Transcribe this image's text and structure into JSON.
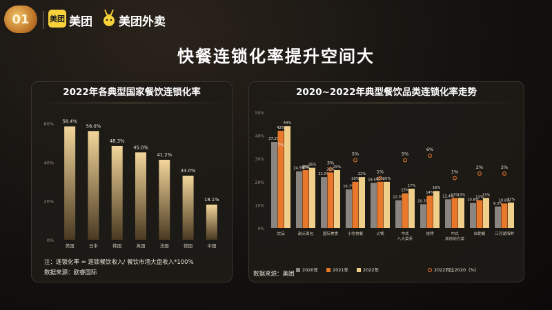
{
  "header": {
    "badge_text": "01",
    "meituan_icon_text": "美团",
    "meituan_label": "美团",
    "waimai_label": "美团外卖"
  },
  "main_title": "快餐连锁化率提升空间大",
  "left_panel": {
    "title": "2022年各典型国家餐饮连锁化率",
    "note": "注：连锁化率 = 连锁餐饮收入/ 餐饮市场大盘收入*100%",
    "source": "数据来源：欧睿国际"
  },
  "right_panel": {
    "title": "2020~2022年典型餐饮品类连锁化率走势",
    "source": "数据来源：美团"
  },
  "colors": {
    "bar_top": "#f2d59a",
    "bar_bottom": "#4a3a22",
    "s2020": "#8a8580",
    "s2021": "#e8782c",
    "s2022": "#f0cf8a",
    "growth": "#e8782c"
  },
  "chart_data": [
    {
      "type": "bar",
      "title": "2022年各典型国家餐饮连锁化率",
      "categories": [
        "美国",
        "日本",
        "韩国",
        "英国",
        "法国",
        "德国",
        "中国"
      ],
      "values": [
        58.4,
        56.0,
        48.3,
        45.0,
        41.2,
        33.0,
        18.1
      ],
      "value_labels": [
        "58.4%",
        "56.0%",
        "48.3%",
        "45.0%",
        "41.2%",
        "33.0%",
        "18.1%"
      ],
      "ylim": [
        0,
        60
      ],
      "yticks": [
        0,
        20,
        40,
        60
      ],
      "ytick_labels": [
        "0%",
        "20%",
        "40%",
        "60%"
      ],
      "grid": false
    },
    {
      "type": "bar",
      "title": "2020~2022年典型餐饮品类连锁化率走势",
      "categories": [
        "饮品",
        "甜点面包",
        "国际美食",
        "小吃快餐",
        "火锅",
        "中式\n八大菜系",
        "烧烤",
        "中式\n其他地方菜",
        "自助餐",
        "江河湖海鲜"
      ],
      "series": [
        {
          "name": "2020年",
          "values": [
            37.2,
            24.5,
            22.0,
            16.7,
            19.5,
            12.0,
            10.3,
            12.4,
            10.8,
            9.3
          ]
        },
        {
          "name": "2021年",
          "values": [
            42,
            25,
            24,
            20,
            20,
            15,
            14,
            13,
            12,
            10.6
          ]
        },
        {
          "name": "2022年",
          "values": [
            44,
            26,
            25,
            22,
            20,
            17,
            16,
            13,
            13,
            11
          ]
        }
      ],
      "labels": {
        "2020年": [
          "37.2%",
          "24.5%",
          "22.0%",
          "16.7%",
          "19.5%",
          "12.0%",
          "10.3%",
          "12.4%",
          "10.8%",
          "9.3%"
        ],
        "2021年": [
          "42%",
          "25%",
          "24%",
          "20%",
          "20%",
          "15%",
          "14%",
          "13%",
          "12%",
          "10.6%"
        ],
        "2022年": [
          "44%",
          "26%",
          "25%",
          "22%",
          "20%",
          "17%",
          "16%",
          "13%",
          "13%",
          "11%"
        ]
      },
      "growth": {
        "name": "2022同比2020（%）",
        "values": [
          7,
          2,
          3,
          5,
          1,
          5,
          6,
          1,
          2,
          2
        ],
        "labels": [
          "7%",
          "2%",
          "3%",
          "5%",
          "1%",
          "5%",
          "6%",
          "1%",
          "2%",
          "2%"
        ]
      },
      "ylim": [
        0,
        50
      ],
      "yticks": [
        0,
        10,
        20,
        30,
        40,
        50
      ],
      "ytick_labels": [
        "0%",
        "10%",
        "20%",
        "30%",
        "40%",
        "50%"
      ],
      "legend": "bottom",
      "grid": false
    }
  ]
}
